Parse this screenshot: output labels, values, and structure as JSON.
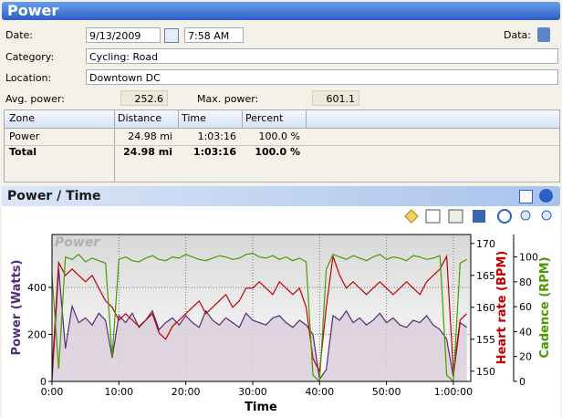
{
  "header": {
    "title": "Power"
  },
  "form": {
    "date_label": "Date:",
    "date": "9/13/2009",
    "time": "7:58 AM",
    "data_label": "Data:",
    "category_label": "Category:",
    "category": "Cycling: Road",
    "location_label": "Location:",
    "location": "Downtown DC",
    "avg_power_label": "Avg. power:",
    "avg_power": "252.6",
    "max_power_label": "Max. power:",
    "max_power": "601.1"
  },
  "table": {
    "columns": [
      "Zone",
      "Distance",
      "Time",
      "Percent"
    ],
    "rows": [
      [
        "Power",
        "24.98 mi",
        "1:03:16",
        "100.0 %"
      ],
      [
        "Total",
        "24.98 mi",
        "1:03:16",
        "100.0 %"
      ]
    ]
  },
  "chart_header": {
    "title": "Power / Time"
  },
  "chart_data": {
    "type": "line",
    "watermark": "Power",
    "xlabel": "Time",
    "ylabel": "Power (Watts)",
    "y2label": "Heart rate (BPM)",
    "y3label": "Cadence (RPM)",
    "x": [
      0,
      1,
      2,
      3,
      4,
      5,
      6,
      7,
      8,
      9,
      10,
      11,
      12,
      13,
      14,
      15,
      16,
      17,
      18,
      19,
      20,
      21,
      22,
      23,
      24,
      25,
      26,
      27,
      28,
      29,
      30,
      31,
      32,
      33,
      34,
      35,
      36,
      37,
      38,
      39,
      40,
      41,
      42,
      43,
      44,
      45,
      46,
      47,
      48,
      49,
      50,
      51,
      52,
      53,
      54,
      55,
      56,
      57,
      58,
      59,
      60,
      61,
      62
    ],
    "xlim": [
      0,
      62.6
    ],
    "xticks": [
      {
        "value": 0,
        "label": "0:00"
      },
      {
        "value": 10,
        "label": "10:00"
      },
      {
        "value": 20,
        "label": "20:00"
      },
      {
        "value": 30,
        "label": "30:00"
      },
      {
        "value": 40,
        "label": "40:00"
      },
      {
        "value": 50,
        "label": "50:00"
      },
      {
        "value": 60,
        "label": "1:00:00"
      }
    ],
    "ylim": [
      0,
      625
    ],
    "yticks": [
      0,
      200,
      400
    ],
    "y2lim": [
      148.4,
      171.4
    ],
    "y2ticks": [
      150,
      155,
      160,
      165,
      170
    ],
    "y3lim": [
      0,
      118
    ],
    "y3ticks": [
      0,
      20,
      40,
      60,
      80,
      100
    ],
    "grid": true,
    "series": [
      {
        "name": "Power",
        "color": "#552a78",
        "fill": "#d9cfdb",
        "values": [
          0,
          480,
          140,
          320,
          250,
          270,
          240,
          290,
          260,
          100,
          280,
          250,
          290,
          230,
          260,
          300,
          220,
          250,
          270,
          240,
          280,
          250,
          230,
          300,
          260,
          240,
          270,
          250,
          230,
          290,
          260,
          250,
          240,
          270,
          280,
          250,
          230,
          260,
          240,
          200,
          10,
          50,
          280,
          260,
          300,
          250,
          270,
          240,
          260,
          290,
          250,
          270,
          240,
          230,
          260,
          250,
          280,
          240,
          220,
          180,
          20,
          250,
          230
        ]
      },
      {
        "name": "Heart rate",
        "color": "#c00000",
        "axis": "y2",
        "values": [
          150,
          167,
          165,
          166,
          165,
          164,
          165,
          163,
          161,
          160,
          158,
          159,
          158,
          157,
          158,
          159,
          156,
          155,
          157,
          158,
          159,
          160,
          161,
          159,
          160,
          161,
          162,
          160,
          161,
          163,
          163,
          164,
          163,
          162,
          164,
          163,
          162,
          163,
          160,
          152,
          150,
          160,
          168,
          165,
          163,
          164,
          163,
          162,
          163,
          164,
          163,
          162,
          163,
          164,
          163,
          162,
          164,
          165,
          166,
          168,
          150,
          158,
          159
        ]
      },
      {
        "name": "Cadence",
        "color": "#4a9a00",
        "axis": "y3",
        "values": [
          85,
          10,
          100,
          98,
          102,
          96,
          99,
          97,
          95,
          20,
          98,
          100,
          97,
          96,
          99,
          101,
          98,
          97,
          100,
          99,
          102,
          100,
          98,
          97,
          99,
          101,
          100,
          98,
          99,
          102,
          103,
          100,
          99,
          101,
          98,
          100,
          97,
          99,
          96,
          5,
          0,
          90,
          102,
          100,
          98,
          101,
          99,
          97,
          100,
          102,
          98,
          100,
          99,
          97,
          101,
          100,
          98,
          99,
          101,
          5,
          0,
          95,
          98
        ]
      }
    ]
  }
}
